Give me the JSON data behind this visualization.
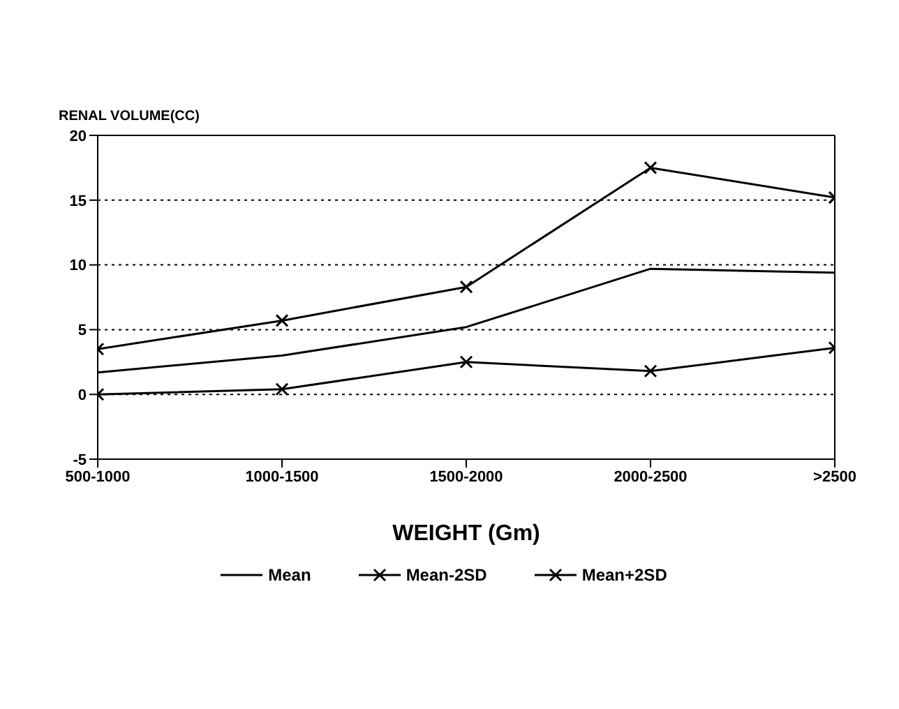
{
  "chart_data": {
    "type": "line",
    "xlabel": "WEIGHT (Gm)",
    "ylabel": "RENAL VOLUME(CC)",
    "categories": [
      "500-1000",
      "1000-1500",
      "1500-2000",
      "2000-2500",
      ">2500"
    ],
    "series": [
      {
        "name": "Mean",
        "color": "#000000",
        "marker": "none",
        "values": [
          1.7,
          3.0,
          5.2,
          9.7,
          9.4
        ]
      },
      {
        "name": "Mean-2SD",
        "color": "#000000",
        "marker": "cross",
        "values": [
          0.0,
          0.4,
          2.5,
          1.8,
          3.6
        ]
      },
      {
        "name": "Mean+2SD",
        "color": "#000000",
        "marker": "cross",
        "values": [
          3.5,
          5.7,
          8.3,
          17.5,
          15.2
        ]
      }
    ],
    "ylim": [
      -5,
      20
    ],
    "yticks": [
      -5,
      0,
      5,
      10,
      15,
      20
    ],
    "grid": "y",
    "legend": "bottom",
    "line_style": "solid"
  }
}
